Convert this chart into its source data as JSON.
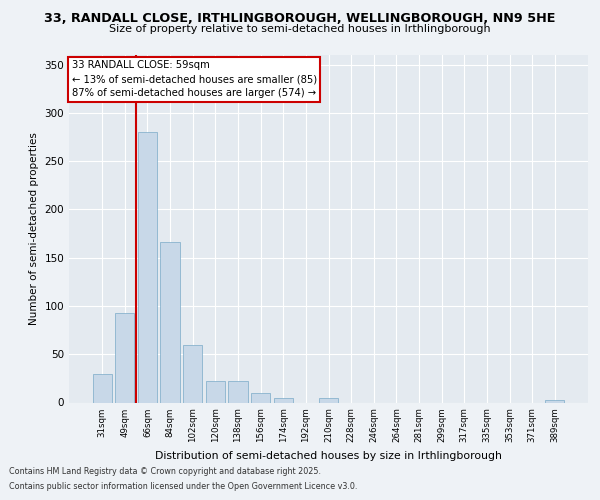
{
  "title_line1": "33, RANDALL CLOSE, IRTHLINGBOROUGH, WELLINGBOROUGH, NN9 5HE",
  "title_line2": "Size of property relative to semi-detached houses in Irthlingborough",
  "xlabel": "Distribution of semi-detached houses by size in Irthlingborough",
  "ylabel": "Number of semi-detached properties",
  "categories": [
    "31sqm",
    "49sqm",
    "66sqm",
    "84sqm",
    "102sqm",
    "120sqm",
    "138sqm",
    "156sqm",
    "174sqm",
    "192sqm",
    "210sqm",
    "228sqm",
    "246sqm",
    "264sqm",
    "281sqm",
    "299sqm",
    "317sqm",
    "335sqm",
    "353sqm",
    "371sqm",
    "389sqm"
  ],
  "values": [
    30,
    93,
    280,
    166,
    60,
    22,
    22,
    10,
    5,
    0,
    5,
    0,
    0,
    0,
    0,
    0,
    0,
    0,
    0,
    0,
    3
  ],
  "bar_color": "#c8d8e8",
  "bar_edge_color": "#7aaac8",
  "marker_line_color": "#cc0000",
  "annotation_title": "33 RANDALL CLOSE: 59sqm",
  "annotation_line1": "← 13% of semi-detached houses are smaller (85)",
  "annotation_line2": "87% of semi-detached houses are larger (574) →",
  "annotation_box_color": "#cc0000",
  "ylim": [
    0,
    360
  ],
  "yticks": [
    0,
    50,
    100,
    150,
    200,
    250,
    300,
    350
  ],
  "footer_line1": "Contains HM Land Registry data © Crown copyright and database right 2025.",
  "footer_line2": "Contains public sector information licensed under the Open Government Licence v3.0.",
  "bg_color": "#eef2f6",
  "plot_bg_color": "#e4eaf0"
}
